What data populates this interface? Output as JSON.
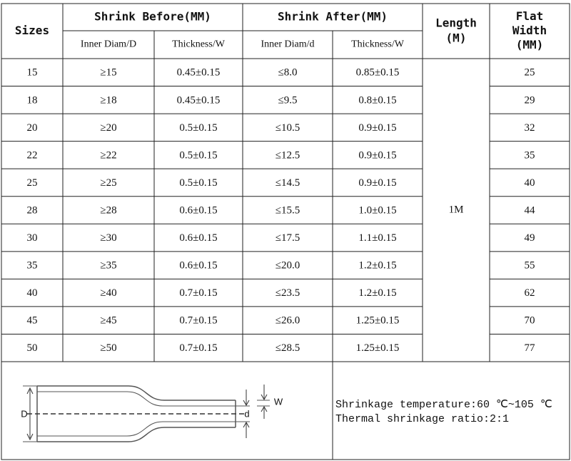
{
  "table": {
    "headers": {
      "sizes": "Sizes",
      "before": "Shrink Before(MM)",
      "after": "Shrink After(MM)",
      "length": [
        "Length",
        "(M)"
      ],
      "flat_width": [
        "Flat",
        "Width",
        "(MM)"
      ],
      "sub": [
        "Inner Diam/D",
        "Thickness/W",
        "Inner Diam/d",
        "Thickness/W"
      ]
    },
    "rows": [
      [
        "15",
        "≥15",
        "0.45±0.15",
        "≤8.0",
        "0.85±0.15",
        "25"
      ],
      [
        "18",
        "≥18",
        "0.45±0.15",
        "≤9.5",
        "0.8±0.15",
        "29"
      ],
      [
        "20",
        "≥20",
        "0.5±0.15",
        "≤10.5",
        "0.9±0.15",
        "32"
      ],
      [
        "22",
        "≥22",
        "0.5±0.15",
        "≤12.5",
        "0.9±0.15",
        "35"
      ],
      [
        "25",
        "≥25",
        "0.5±0.15",
        "≤14.5",
        "0.9±0.15",
        "40"
      ],
      [
        "28",
        "≥28",
        "0.6±0.15",
        "≤15.5",
        "1.0±0.15",
        "44"
      ],
      [
        "30",
        "≥30",
        "0.6±0.15",
        "≤17.5",
        "1.1±0.15",
        "49"
      ],
      [
        "35",
        "≥35",
        "0.6±0.15",
        "≤20.0",
        "1.2±0.15",
        "55"
      ],
      [
        "40",
        "≥40",
        "0.7±0.15",
        "≤23.5",
        "1.2±0.15",
        "62"
      ],
      [
        "45",
        "≥45",
        "0.7±0.15",
        "≤26.0",
        "1.25±0.15",
        "70"
      ],
      [
        "50",
        "≥50",
        "0.7±0.15",
        "≤28.5",
        "1.25±0.15",
        "77"
      ]
    ],
    "length": "1M"
  },
  "footer": {
    "lines": [
      "Shrinkage temperature:60 ℃~105 ℃",
      "Thermal shrinkage ratio:2:1"
    ],
    "diagram": {
      "D": "D",
      "d": "d",
      "W": "W"
    }
  }
}
